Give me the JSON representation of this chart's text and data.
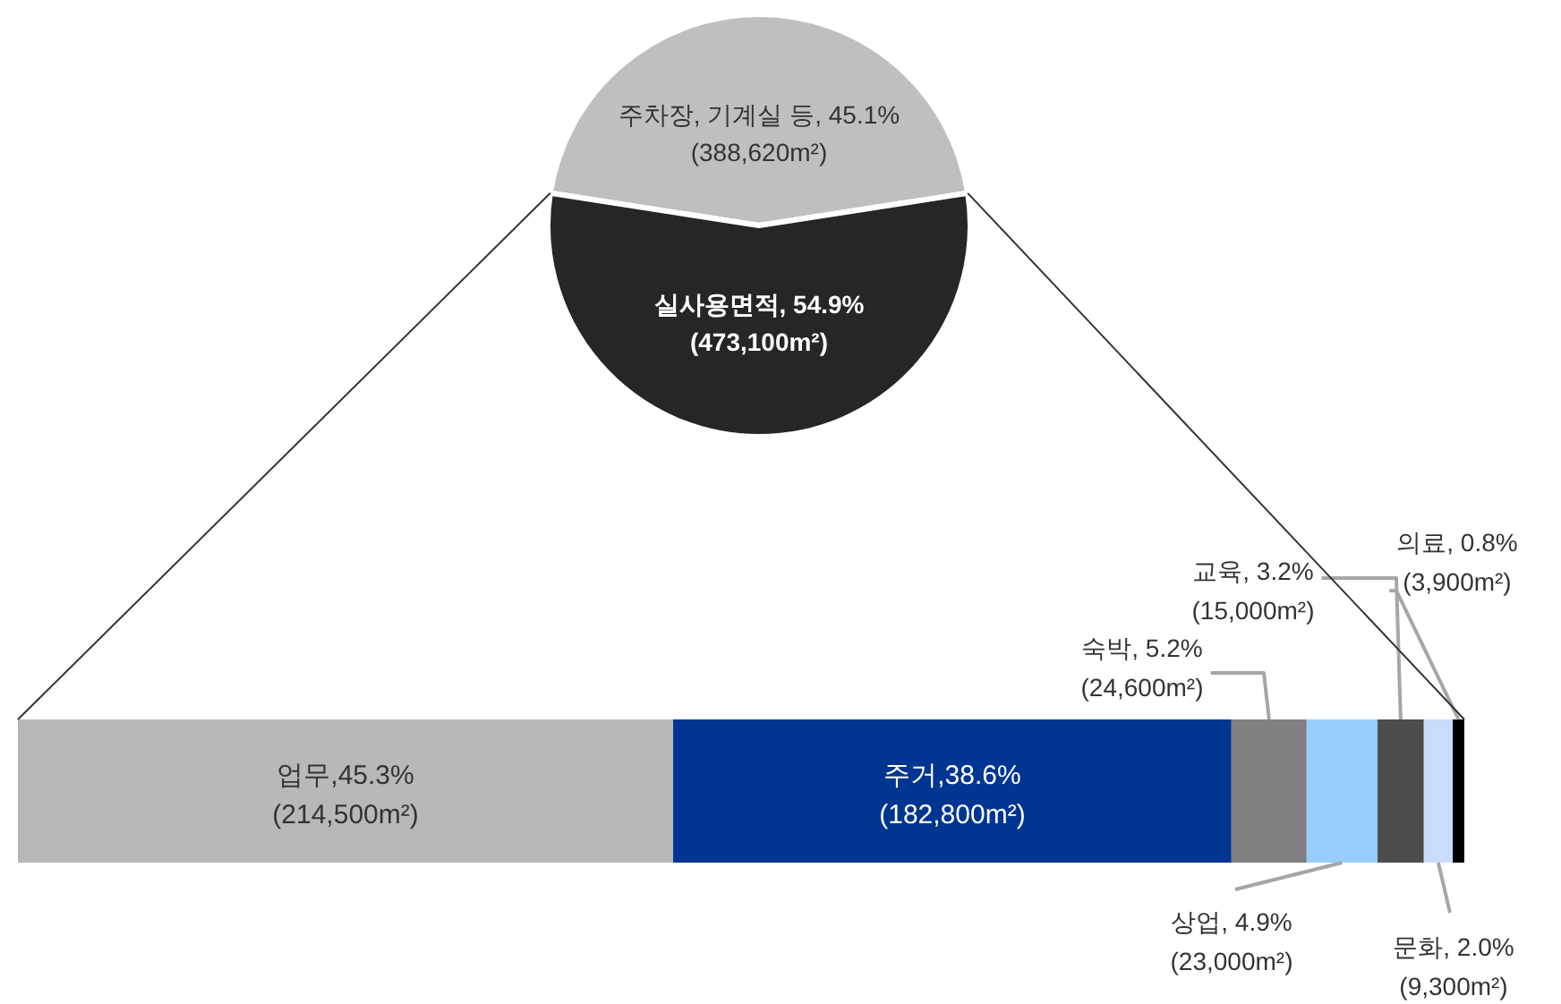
{
  "chart_data": [
    {
      "type": "pie",
      "categories": [
        null,
        null
      ],
      "values": [
        45.1,
        54.9
      ],
      "colors": [
        "#bfbfbf",
        "#262626"
      ],
      "value_labels": [
        "주차장, 기계실 등, 45.1%\n(388,620m²)",
        "실사용면적, 54.9%\n(473,100m²)"
      ]
    },
    {
      "type": "bar",
      "orientation": "horizontal",
      "stacked": true,
      "categories": [
        null
      ],
      "series": [
        {
          "color": "#b8b8b8",
          "values": [
            45.3
          ],
          "value_labels": [
            "업무,45.3%\n(214,500m²)"
          ]
        },
        {
          "color": "#003591",
          "values": [
            38.6
          ],
          "value_labels": [
            "주거,38.6%\n(182,800m²)"
          ]
        },
        {
          "color": "#808080",
          "values": [
            5.2
          ],
          "value_labels": [
            "숙박, 5.2%\n(24,600m²)"
          ]
        },
        {
          "color": "#99ccff",
          "values": [
            4.9
          ],
          "value_labels": [
            "상업, 4.9%\n(23,000m²)"
          ]
        },
        {
          "color": "#4d4d4d",
          "values": [
            3.2
          ],
          "value_labels": [
            "교육, 3.2%\n(15,000m²)"
          ]
        },
        {
          "color": "#ccdcff",
          "values": [
            2.0
          ],
          "value_labels": [
            "문화, 2.0%\n(9,300m²)"
          ]
        },
        {
          "color": "#000000",
          "values": [
            0.8
          ],
          "value_labels": [
            "의료, 0.8%\n(3,900m²)"
          ]
        }
      ]
    }
  ]
}
